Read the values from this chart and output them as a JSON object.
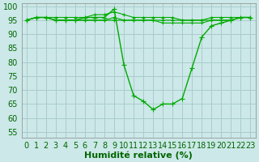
{
  "xlabel": "Humidité relative (%)",
  "ylim": [
    53,
    101
  ],
  "xlim": [
    -0.5,
    23.5
  ],
  "yticks": [
    55,
    60,
    65,
    70,
    75,
    80,
    85,
    90,
    95,
    100
  ],
  "xticks": [
    0,
    1,
    2,
    3,
    4,
    5,
    6,
    7,
    8,
    9,
    10,
    11,
    12,
    13,
    14,
    15,
    16,
    17,
    18,
    19,
    20,
    21,
    22,
    23
  ],
  "bg_color": "#cce8e8",
  "grid_color": "#aacccc",
  "line_color": "#00aa00",
  "series": [
    [
      95,
      96,
      96,
      96,
      96,
      96,
      96,
      97,
      97,
      98,
      97,
      96,
      96,
      96,
      96,
      96,
      95,
      95,
      95,
      96,
      96,
      96,
      96,
      96
    ],
    [
      95,
      96,
      96,
      95,
      95,
      95,
      95,
      95,
      95,
      96,
      95,
      95,
      95,
      95,
      94,
      94,
      94,
      94,
      94,
      95,
      95,
      95,
      96,
      96
    ],
    [
      95,
      96,
      96,
      95,
      95,
      95,
      96,
      96,
      96,
      99,
      79,
      68,
      66,
      63,
      65,
      65,
      67,
      78,
      89,
      93,
      94,
      95,
      96,
      96
    ],
    [
      95,
      96,
      96,
      95,
      95,
      95,
      95,
      95,
      95,
      95,
      95,
      95,
      95,
      95,
      95,
      95,
      95,
      95,
      95,
      95,
      95,
      95,
      96,
      96
    ]
  ],
  "font_color": "#006600",
  "tick_font_size": 7,
  "xlabel_font_size": 8
}
